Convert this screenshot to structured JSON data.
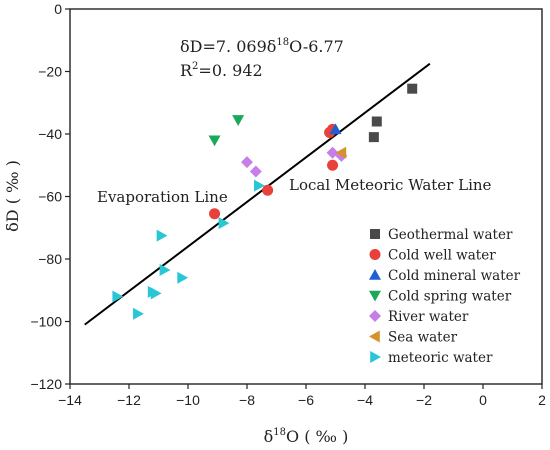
{
  "chart_data": {
    "type": "scatter",
    "xlim": [
      -14,
      2
    ],
    "ylim": [
      -120,
      0
    ],
    "xticks": [
      "-14",
      "-12",
      "-10",
      "-8",
      "-6",
      "-4",
      "-2",
      "0",
      "2"
    ],
    "yticks": [
      "0",
      "-20",
      "-40",
      "-60",
      "-80",
      "-100",
      "-120"
    ],
    "xlabel": {
      "base": "δ",
      "sup": "18",
      "rest": "O ( ‰ )"
    },
    "ylabel": "δD ( ‰ )",
    "equation": {
      "part1": "δD=7. 069δ",
      "sup": "18",
      "part2": "O-6.77"
    },
    "r2": {
      "part1": "R",
      "sup": "2",
      "part2": "=0. 942"
    },
    "line_labels": {
      "evaporation": "Evaporation Line",
      "meteoric": "Local Meteoric Water Line"
    },
    "regression_line": {
      "x": [
        -13.5,
        -1.8
      ],
      "y": [
        -101,
        -17.5
      ]
    },
    "legend_position": "bottom-right",
    "series": [
      {
        "name": "Geothermal water",
        "marker": "square",
        "color": "#4a4a4a",
        "points": [
          [
            -2.4,
            -25.5
          ],
          [
            -3.6,
            -36
          ],
          [
            -3.7,
            -41
          ]
        ]
      },
      {
        "name": "Cold well water",
        "marker": "circle",
        "color": "#e8403a",
        "points": [
          [
            -5.2,
            -39.5
          ],
          [
            -5.1,
            -38.5
          ],
          [
            -5.1,
            -50
          ],
          [
            -7.3,
            -58
          ],
          [
            -9.1,
            -65.5
          ]
        ]
      },
      {
        "name": "Cold mineral water",
        "marker": "triangle-up",
        "color": "#1f5fd6",
        "points": [
          [
            -5.0,
            -38.5
          ]
        ]
      },
      {
        "name": "Cold spring water",
        "marker": "triangle-down",
        "color": "#1aa85b",
        "points": [
          [
            -9.1,
            -42
          ],
          [
            -8.3,
            -35.5
          ]
        ]
      },
      {
        "name": "River water",
        "marker": "diamond",
        "color": "#c77ee8",
        "points": [
          [
            -8.0,
            -49
          ],
          [
            -7.7,
            -52
          ],
          [
            -5.1,
            -46
          ],
          [
            -4.8,
            -47
          ]
        ]
      },
      {
        "name": "Sea water",
        "marker": "triangle-left",
        "color": "#d4932a",
        "points": [
          [
            -4.8,
            -46
          ]
        ]
      },
      {
        "name": "meteoric water",
        "marker": "triangle-right",
        "color": "#29c6d6",
        "points": [
          [
            -7.6,
            -56.5
          ],
          [
            -8.8,
            -68.5
          ],
          [
            -10.9,
            -72.5
          ],
          [
            -10.8,
            -83.5
          ],
          [
            -10.2,
            -86
          ],
          [
            -11.2,
            -90.5
          ],
          [
            -11.1,
            -91
          ],
          [
            -12.4,
            -92
          ],
          [
            -11.7,
            -97.5
          ]
        ]
      }
    ]
  }
}
